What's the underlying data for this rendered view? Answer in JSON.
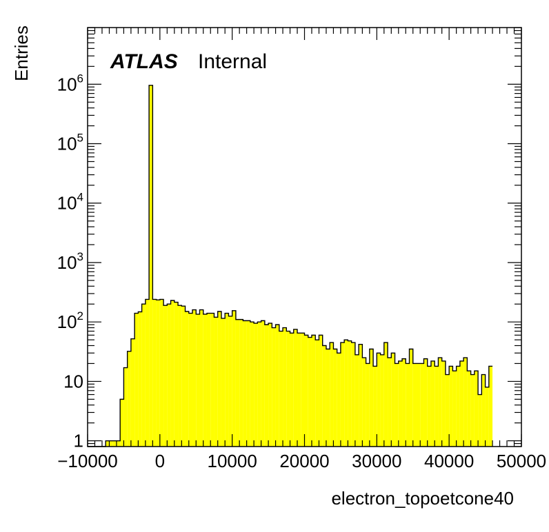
{
  "chart_data": {
    "type": "histogram",
    "title": "",
    "xlabel": "electron_topoetcone40",
    "ylabel": "Entries",
    "xlim": [
      -10000,
      50000
    ],
    "ylim": [
      0.8,
      9000000
    ],
    "yscale": "log",
    "grid": false,
    "legend": "none",
    "fill_color": "#ffff00",
    "line_color": "#000000",
    "x_ticks": [
      -10000,
      0,
      10000,
      20000,
      30000,
      40000,
      50000
    ],
    "x_tick_labels": [
      "−10000",
      "0",
      "10000",
      "20000",
      "30000",
      "40000",
      "50000"
    ],
    "y_ticks": [
      {
        "value": 1,
        "base": "1",
        "exp": ""
      },
      {
        "value": 10,
        "base": "10",
        "exp": ""
      },
      {
        "value": 100,
        "base": "10",
        "exp": "2"
      },
      {
        "value": 1000,
        "base": "10",
        "exp": "3"
      },
      {
        "value": 10000,
        "base": "10",
        "exp": "4"
      },
      {
        "value": 100000,
        "base": "10",
        "exp": "5"
      },
      {
        "value": 1000000,
        "base": "10",
        "exp": "6"
      }
    ],
    "label_main": "ATLAS",
    "label_sub": "Internal",
    "bin_edges_start": -10000,
    "bin_width": 500,
    "values": [
      0,
      0,
      0,
      0,
      0,
      1,
      1,
      1,
      1,
      5,
      17,
      32,
      52,
      140,
      148,
      200,
      240,
      960000,
      240,
      235,
      240,
      190,
      200,
      230,
      215,
      190,
      185,
      150,
      140,
      160,
      135,
      160,
      135,
      140,
      140,
      120,
      150,
      115,
      140,
      125,
      155,
      110,
      110,
      105,
      105,
      100,
      95,
      100,
      105,
      90,
      95,
      80,
      90,
      70,
      80,
      70,
      65,
      75,
      65,
      65,
      60,
      55,
      60,
      50,
      60,
      40,
      35,
      45,
      35,
      30,
      45,
      50,
      48,
      45,
      28,
      42,
      25,
      20,
      35,
      18,
      30,
      28,
      45,
      25,
      30,
      20,
      22,
      24,
      20,
      35,
      20,
      20,
      20,
      24,
      18,
      22,
      18,
      25,
      22,
      13,
      18,
      15,
      18,
      22,
      25,
      15,
      13,
      15,
      6,
      13,
      8,
      18
    ]
  }
}
